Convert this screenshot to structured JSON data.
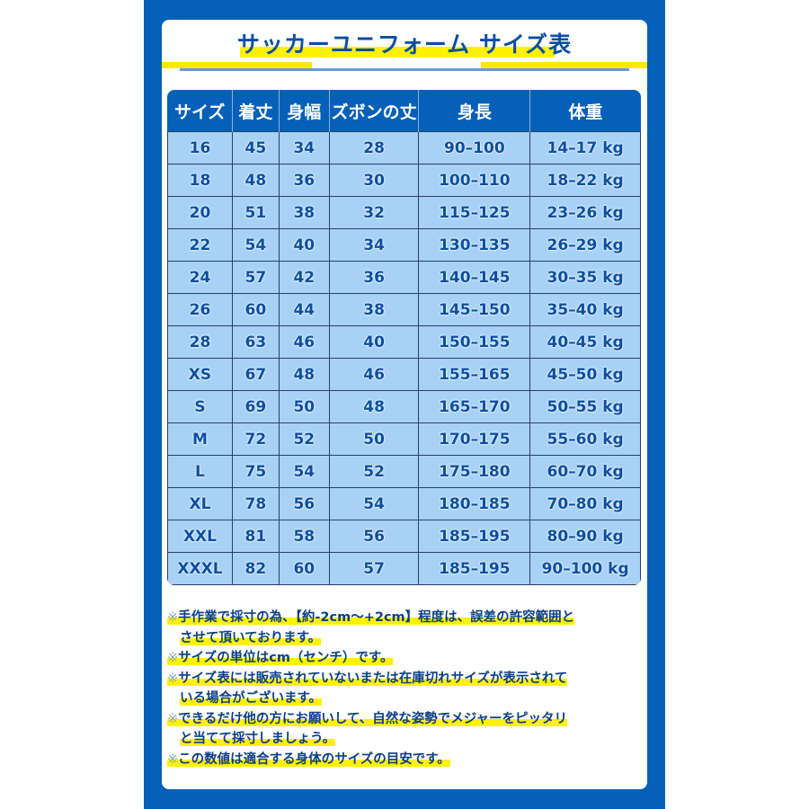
{
  "title": "サッカーユニフォーム サイズ表",
  "headers": [
    "サイズ",
    "着丈",
    "身幅",
    "ズボンの丈",
    "身長",
    "体重"
  ],
  "rows": [
    [
      "16",
      "45",
      "34",
      "28",
      "90–100",
      "14–17 kg"
    ],
    [
      "18",
      "48",
      "36",
      "30",
      "100–110",
      "18–22 kg"
    ],
    [
      "20",
      "51",
      "38",
      "32",
      "115–125",
      "23–26 kg"
    ],
    [
      "22",
      "54",
      "40",
      "34",
      "130–135",
      "26–29 kg"
    ],
    [
      "24",
      "57",
      "42",
      "36",
      "140–145",
      "30–35 kg"
    ],
    [
      "26",
      "60",
      "44",
      "38",
      "145–150",
      "35–40 kg"
    ],
    [
      "28",
      "63",
      "46",
      "40",
      "150–155",
      "40–45 kg"
    ],
    [
      "XS",
      "67",
      "48",
      "46",
      "155–165",
      "45–50 kg"
    ],
    [
      "S",
      "69",
      "50",
      "48",
      "165–170",
      "50–55 kg"
    ],
    [
      "M",
      "72",
      "52",
      "50",
      "170–175",
      "55–60 kg"
    ],
    [
      "L",
      "75",
      "54",
      "52",
      "175–180",
      "60–70 kg"
    ],
    [
      "XL",
      "78",
      "56",
      "54",
      "180–185",
      "70–80 kg"
    ],
    [
      "XXL",
      "81",
      "58",
      "56",
      "185–195",
      "80–90 kg"
    ],
    [
      "XXXL",
      "82",
      "60",
      "57",
      "185–195",
      "90–100 kg"
    ]
  ],
  "notes": [
    {
      "mark": "※",
      "lines": [
        "手作業で採寸の為、【約-2cm～+2cm】程度は、誤差の許容範囲と",
        "させて頂いております。"
      ]
    },
    {
      "mark": "※",
      "lines": [
        "サイズの単位はcm（センチ）です。"
      ]
    },
    {
      "mark": "※",
      "lines": [
        "サイズ表には販売されていないまたは在庫切れサイズが表示されて",
        "いる場合がございます。"
      ]
    },
    {
      "mark": "※",
      "lines": [
        "できるだけ他の方にお願いして、自然な姿勢でメジャーをピッタリ",
        "と当てて採寸しましょう。"
      ]
    },
    {
      "mark": "※",
      "lines": [
        "この数値は適合する身体のサイズの目安です。"
      ]
    }
  ],
  "colors": {
    "frame": "#0560b8",
    "cell": "#a7d1f5",
    "highlight": "#fff200",
    "text": "#0b4fa0"
  }
}
